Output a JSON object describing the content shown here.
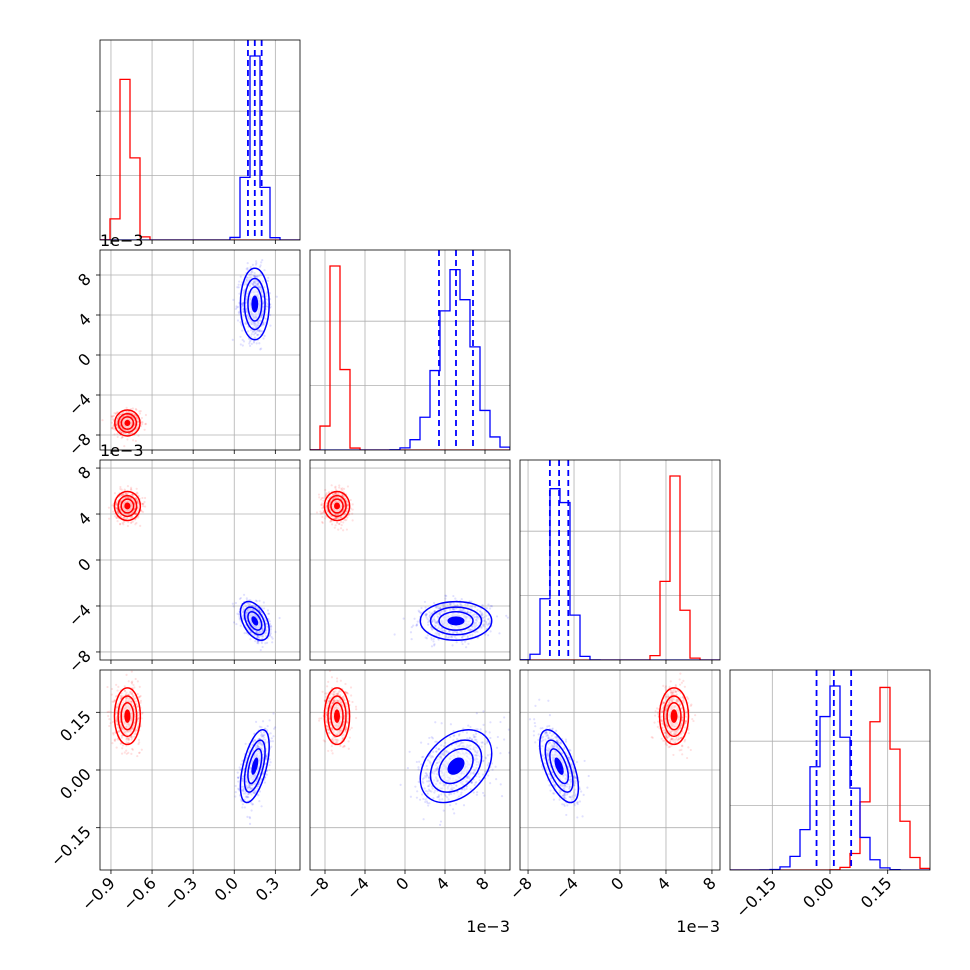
{
  "chart_data": {
    "type": "corner",
    "grid": true,
    "parameters": [
      {
        "scale_label": "",
        "ticks": [
          "−0.9",
          "−0.6",
          "−0.3",
          "0.0",
          "0.3"
        ],
        "range": [
          -0.98,
          0.48
        ]
      },
      {
        "scale_label": "1e−3",
        "ticks": [
          "−8",
          "−4",
          "0",
          "4",
          "8"
        ],
        "range": [
          -0.0095,
          0.0105
        ]
      },
      {
        "scale_label": "1e−3",
        "ticks": [
          "−8",
          "−4",
          "0",
          "4",
          "8"
        ],
        "range": [
          -0.0087,
          0.0087
        ]
      },
      {
        "scale_label": "",
        "ticks": [
          "−0.15",
          "0.00",
          "0.15"
        ],
        "range": [
          -0.26,
          0.26
        ]
      }
    ],
    "series": [
      {
        "color": "#ff0000",
        "means": [
          -0.78,
          -0.0068,
          0.0047,
          0.14
        ],
        "sds": [
          0.045,
          0.0006,
          0.0006,
          0.035
        ],
        "correlations": [
          [
            0,
            1,
            0.0
          ],
          [
            0,
            2,
            0.0
          ],
          [
            0,
            3,
            0.0
          ],
          [
            1,
            2,
            0.0
          ],
          [
            1,
            3,
            0.0
          ],
          [
            2,
            3,
            0.0
          ]
        ]
      },
      {
        "color": "#0000ff",
        "means": [
          0.15,
          0.0051,
          -0.0053,
          0.01
        ],
        "sds": [
          0.05,
          0.0017,
          0.0008,
          0.045
        ],
        "correlations": [
          [
            0,
            1,
            0.0
          ],
          [
            0,
            2,
            -0.45
          ],
          [
            0,
            3,
            0.55
          ],
          [
            1,
            2,
            0.0
          ],
          [
            1,
            3,
            0.35
          ],
          [
            2,
            3,
            -0.6
          ]
        ],
        "quantiles_shown": true
      }
    ]
  }
}
